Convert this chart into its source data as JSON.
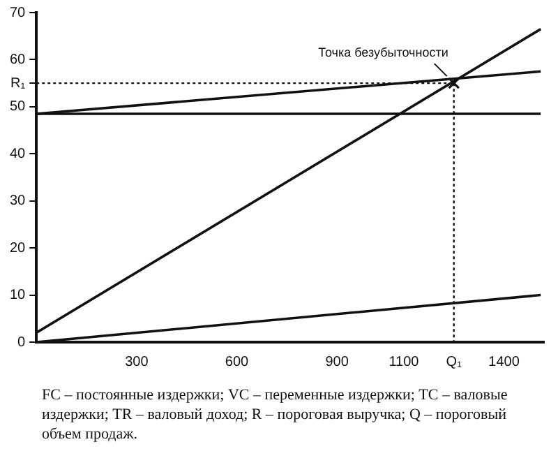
{
  "chart_data": {
    "type": "line",
    "xlim": [
      0,
      1520
    ],
    "ylim": [
      0,
      70
    ],
    "xticks": [
      300,
      600,
      900,
      1100,
      {
        "value": 1250,
        "label": "Q₁"
      },
      1400
    ],
    "yticks": [
      0,
      10,
      20,
      30,
      40,
      50,
      {
        "value": 55,
        "label": "R₁"
      },
      60,
      70
    ],
    "grid": false,
    "legend": false,
    "marker": "none",
    "line_style": "solid",
    "series": [
      {
        "color": "#111111",
        "x": [
          0,
          1510
        ],
        "values": [
          48.5,
          48.5
        ]
      },
      {
        "color": "#111111",
        "x": [
          0,
          1510
        ],
        "values": [
          48.5,
          57.5
        ]
      },
      {
        "color": "#111111",
        "x": [
          0,
          1510
        ],
        "values": [
          2,
          66.5
        ]
      },
      {
        "color": "#111111",
        "x": [
          0,
          1510
        ],
        "values": [
          0,
          10
        ]
      },
      {
        "color": "#111111",
        "x": [
          0,
          1250
        ],
        "values": [
          55,
          55
        ],
        "line_style": "dotted"
      },
      {
        "color": "#111111",
        "x": [
          1250,
          1250
        ],
        "values": [
          55,
          0
        ],
        "line_style": "dotted"
      },
      {
        "type": "scatter",
        "color": "#111111",
        "x": [
          1250
        ],
        "values": [
          55
        ],
        "marker": "cross"
      }
    ],
    "annotations": [
      {
        "text": "Точка безубыточности",
        "x": 1250,
        "y": 55
      },
      "FC – постоянные издержки; VC – переменные издержки; TC – валовые издержки; TR – валовый доход; R – пороговая выручка; Q – пороговый объем продаж."
    ]
  }
}
